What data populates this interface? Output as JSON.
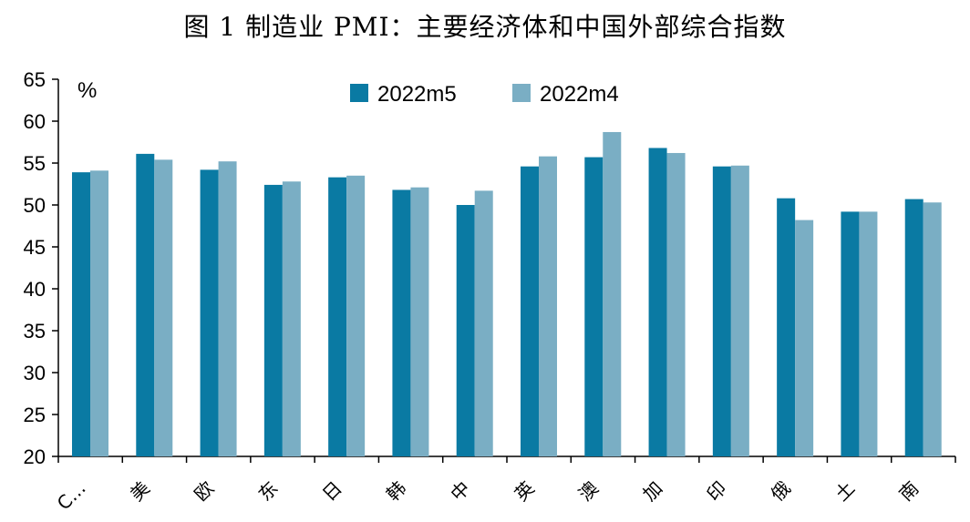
{
  "chart_data": {
    "type": "bar",
    "title": "图 1 制造业 PMI：主要经济体和中国外部综合指数",
    "unit_label": "%",
    "categories": [
      "C…",
      "美",
      "欧",
      "东",
      "日",
      "韩",
      "中",
      "英",
      "澳",
      "加",
      "印",
      "俄",
      "土",
      "南"
    ],
    "series": [
      {
        "name": "2022m5",
        "color": "#0a7aa3",
        "values": [
          53.9,
          56.1,
          54.2,
          52.4,
          53.3,
          51.8,
          50.0,
          54.6,
          55.7,
          56.8,
          54.6,
          50.8,
          49.2,
          50.7
        ]
      },
      {
        "name": "2022m4",
        "color": "#7aaec4",
        "values": [
          54.1,
          55.4,
          55.2,
          52.8,
          53.5,
          52.1,
          51.7,
          55.8,
          58.7,
          56.2,
          54.7,
          48.2,
          49.2,
          50.3
        ]
      }
    ],
    "ylim": [
      20,
      65
    ],
    "yticks": [
      20,
      25,
      30,
      35,
      40,
      45,
      50,
      55,
      60,
      65
    ],
    "legend_position": "top-center"
  }
}
